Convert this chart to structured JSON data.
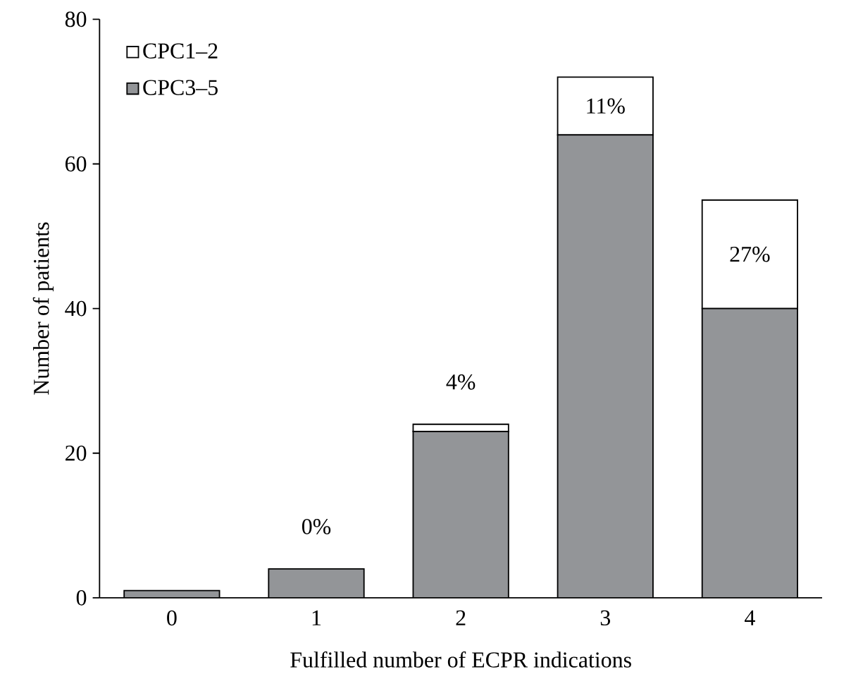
{
  "chart_data": {
    "type": "bar",
    "stacked": true,
    "xlabel": "Fulfilled number of ECPR indications",
    "ylabel": "Number of patients",
    "categories": [
      "0",
      "1",
      "2",
      "3",
      "4"
    ],
    "series": [
      {
        "name": "CPC3–5",
        "color": "#939598",
        "values": [
          1,
          4,
          23,
          64,
          40
        ]
      },
      {
        "name": "CPC1–2",
        "color": "#ffffff",
        "values": [
          0,
          0,
          1,
          8,
          15
        ]
      }
    ],
    "ylim": [
      0,
      80
    ],
    "yticks": [
      0,
      20,
      40,
      60,
      80
    ],
    "legend": "top left",
    "annotations": [
      {
        "text": "0%",
        "x": "1",
        "y": 4
      },
      {
        "text": "4%",
        "x": "2",
        "y": 24
      },
      {
        "text": "11%",
        "x": "3",
        "y": 72
      },
      {
        "text": "27%",
        "x": "4",
        "y": 55
      }
    ]
  }
}
